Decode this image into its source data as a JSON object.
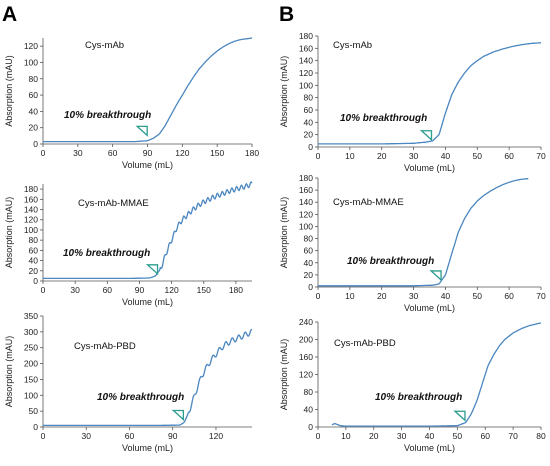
{
  "figure": {
    "panel_left_letter": "A",
    "panel_right_letter": "B",
    "line_color": "#4a86c0",
    "marker_color": "#2a9d8f"
  },
  "chart_data": [
    {
      "type": "line",
      "title": "Cys-mAb",
      "xlabel": "Volume (mL)",
      "ylabel": "Absorption (mAU)",
      "xlim": [
        0,
        180
      ],
      "ylim": [
        0,
        130
      ],
      "xticks": [
        0,
        30,
        60,
        90,
        120,
        150,
        180
      ],
      "yticks": [
        0,
        20,
        40,
        60,
        80,
        100,
        120
      ],
      "annotation": {
        "text": "10% breakthrough",
        "x": 88,
        "y": 13
      },
      "wavy": false,
      "series": [
        {
          "x": [
            0,
            20,
            40,
            60,
            80,
            90,
            95,
            100,
            105,
            110,
            115,
            120,
            125,
            130,
            135,
            140,
            145,
            150,
            155,
            160,
            165,
            170,
            175,
            180
          ],
          "y": [
            3,
            3,
            3,
            3,
            3,
            4,
            7,
            12,
            22,
            35,
            48,
            60,
            72,
            83,
            93,
            101,
            108,
            114,
            119,
            123,
            126,
            128,
            129,
            130
          ]
        }
      ]
    },
    {
      "type": "line",
      "title": "Cys-mAb-MMAE",
      "xlabel": "Volume (mL)",
      "ylabel": "Absorption (mAU)",
      "xlim": [
        0,
        195
      ],
      "ylim": [
        0,
        190
      ],
      "xticks": [
        0,
        30,
        60,
        90,
        120,
        150,
        180
      ],
      "yticks": [
        0,
        20,
        40,
        60,
        80,
        100,
        120,
        140,
        160,
        180
      ],
      "annotation": {
        "text": "10% breakthrough",
        "x": 105,
        "y": 18
      },
      "wavy": true,
      "series": [
        {
          "x": [
            0,
            20,
            40,
            60,
            80,
            100,
            105,
            110,
            115,
            120,
            125,
            130,
            135,
            140,
            145,
            150,
            155,
            160,
            165,
            170,
            175,
            180,
            185,
            190,
            195
          ],
          "y": [
            5,
            5,
            5,
            5,
            5,
            6,
            10,
            25,
            55,
            80,
            105,
            120,
            130,
            140,
            148,
            155,
            160,
            165,
            169,
            173,
            177,
            180,
            183,
            186,
            190
          ]
        }
      ]
    },
    {
      "type": "line",
      "title": "Cys-mAb-PBD",
      "xlabel": "Volume (mL)",
      "ylabel": "Absorption (mAU)",
      "xlim": [
        0,
        145
      ],
      "ylim": [
        0,
        350
      ],
      "xticks": [
        0,
        30,
        60,
        90,
        120
      ],
      "yticks": [
        0,
        50,
        100,
        150,
        200,
        250,
        300,
        350
      ],
      "annotation": {
        "text": "10% breakthrough",
        "x": 96,
        "y": 30
      },
      "wavy": true,
      "series": [
        {
          "x": [
            0,
            20,
            40,
            60,
            80,
            95,
            98,
            100,
            103,
            106,
            110,
            115,
            120,
            125,
            130,
            135,
            140,
            145
          ],
          "y": [
            5,
            5,
            5,
            5,
            5,
            6,
            15,
            35,
            70,
            110,
            160,
            200,
            230,
            255,
            270,
            280,
            290,
            300
          ]
        }
      ]
    },
    {
      "type": "line",
      "title": "Cys-mAb",
      "xlabel": "Volume (mL)",
      "ylabel": "Absorption (mAU)",
      "xlim": [
        0,
        70
      ],
      "ylim": [
        0,
        180
      ],
      "xticks": [
        0,
        10,
        20,
        30,
        40,
        50,
        60,
        70
      ],
      "yticks": [
        0,
        20,
        40,
        60,
        80,
        100,
        120,
        140,
        160,
        180
      ],
      "annotation": {
        "text": "10% breakthrough",
        "x": 35,
        "y": 15
      },
      "wavy": false,
      "series": [
        {
          "x": [
            0,
            10,
            20,
            30,
            34,
            36,
            38,
            40,
            42,
            44,
            46,
            48,
            50,
            52,
            55,
            58,
            61,
            64,
            67,
            70
          ],
          "y": [
            5,
            5,
            5,
            6,
            8,
            10,
            20,
            55,
            85,
            105,
            120,
            132,
            140,
            147,
            154,
            159,
            163,
            166,
            168,
            169
          ]
        }
      ]
    },
    {
      "type": "line",
      "title": "Cys-mAb-MMAE",
      "xlabel": "Volume (mL)",
      "ylabel": "Absorption (mAU)",
      "xlim": [
        0,
        70
      ],
      "ylim": [
        0,
        180
      ],
      "xticks": [
        0,
        10,
        20,
        30,
        40,
        50,
        60,
        70
      ],
      "yticks": [
        0,
        20,
        40,
        60,
        80,
        100,
        120,
        140,
        160,
        180
      ],
      "annotation": {
        "text": "10% breakthrough",
        "x": 38,
        "y": 15
      },
      "wavy": false,
      "series": [
        {
          "x": [
            0,
            10,
            20,
            30,
            36,
            38,
            40,
            42,
            44,
            46,
            48,
            50,
            52,
            54,
            56,
            58,
            60,
            62,
            64,
            66
          ],
          "y": [
            2,
            2,
            2,
            2,
            3,
            5,
            20,
            55,
            90,
            113,
            130,
            142,
            151,
            158,
            164,
            169,
            173,
            176,
            178,
            179
          ]
        }
      ]
    },
    {
      "type": "line",
      "title": "Cys-mAb-PBD",
      "xlabel": "Volume (mL)",
      "ylabel": "Absorption (mAU)",
      "xlim": [
        0,
        80
      ],
      "ylim": [
        0,
        240
      ],
      "xticks": [
        0,
        10,
        20,
        30,
        40,
        50,
        60,
        70,
        80
      ],
      "yticks": [
        0,
        40,
        80,
        120,
        160,
        200,
        240
      ],
      "annotation": {
        "text": "10% breakthrough",
        "x": 52,
        "y": 20
      },
      "wavy": false,
      "series": [
        {
          "x": [
            5,
            6,
            8,
            10,
            20,
            30,
            40,
            50,
            53,
            55,
            57,
            59,
            61,
            63,
            65,
            67,
            70,
            73,
            76,
            80
          ],
          "y": [
            5,
            8,
            3,
            2,
            2,
            2,
            2,
            3,
            10,
            30,
            60,
            100,
            140,
            165,
            185,
            200,
            215,
            225,
            232,
            238
          ]
        }
      ]
    }
  ]
}
